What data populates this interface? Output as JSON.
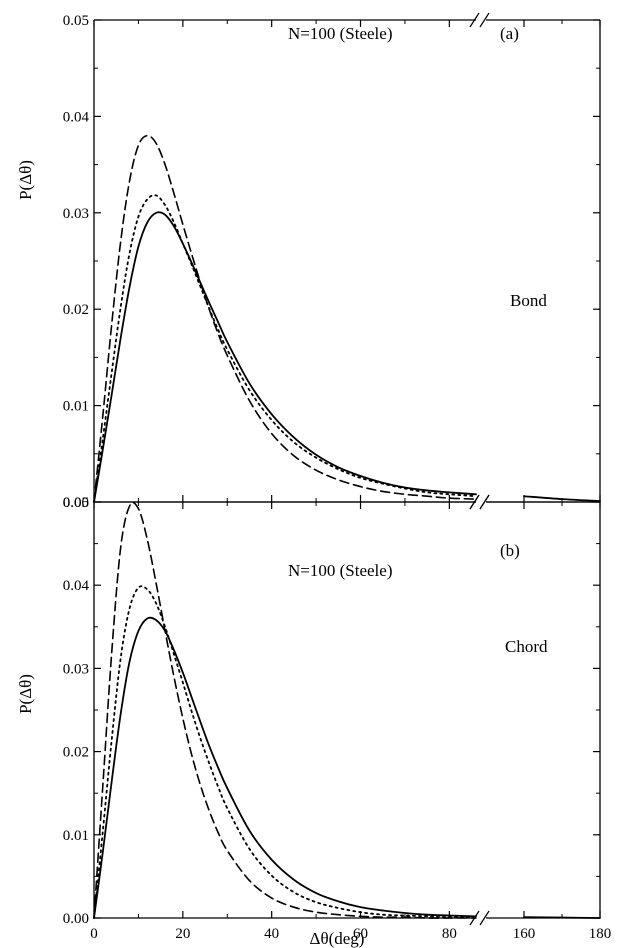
{
  "chart_data": [
    {
      "type": "line",
      "panel_label": "(a)",
      "annotation": "N=100 (Steele)",
      "annotation2": "Bond",
      "ylabel": "P(Δθ)",
      "xlabel": "",
      "ylim": [
        0,
        0.05
      ],
      "y_ticks": [
        "0.00",
        "0.01",
        "0.02",
        "0.03",
        "0.04",
        "0.05"
      ],
      "x_ticks": [
        "0",
        "20",
        "40",
        "60",
        "80",
        "160",
        "180"
      ],
      "x_axis_break": true,
      "x_segments": [
        [
          0,
          86
        ],
        [
          150,
          180
        ]
      ],
      "series": [
        {
          "style": "solid",
          "x": [
            0,
            2,
            4,
            6,
            8,
            10,
            12,
            14,
            16,
            18,
            20,
            22,
            24,
            26,
            28,
            30,
            35,
            40,
            45,
            50,
            55,
            60,
            65,
            70,
            75,
            80,
            86,
            160,
            170,
            180
          ],
          "y": [
            0,
            0.0055,
            0.0112,
            0.017,
            0.0223,
            0.0265,
            0.029,
            0.03,
            0.0298,
            0.0286,
            0.0268,
            0.0248,
            0.0227,
            0.0206,
            0.0186,
            0.0166,
            0.0123,
            0.0091,
            0.0067,
            0.0049,
            0.0036,
            0.0027,
            0.002,
            0.0015,
            0.0012,
            0.001,
            0.0008,
            0.0006,
            0.0003,
            0.0001
          ]
        },
        {
          "style": "dotted",
          "x": [
            0,
            2,
            4,
            6,
            8,
            10,
            12,
            14,
            16,
            18,
            20,
            22,
            24,
            26,
            28,
            30,
            35,
            40,
            45,
            50,
            55,
            60,
            65,
            70,
            75,
            80,
            86
          ],
          "y": [
            0,
            0.0066,
            0.0135,
            0.0202,
            0.0258,
            0.0296,
            0.0314,
            0.0318,
            0.0308,
            0.029,
            0.0268,
            0.0246,
            0.0223,
            0.02,
            0.0178,
            0.0158,
            0.0116,
            0.0085,
            0.0062,
            0.0046,
            0.0034,
            0.0025,
            0.0019,
            0.0014,
            0.001,
            0.0008,
            0.0006
          ]
        },
        {
          "style": "dashed",
          "x": [
            0,
            2,
            4,
            6,
            8,
            10,
            12,
            14,
            16,
            18,
            20,
            22,
            24,
            26,
            28,
            30,
            35,
            40,
            45,
            50,
            55,
            60,
            65,
            70,
            75,
            80,
            86
          ],
          "y": [
            0,
            0.009,
            0.0185,
            0.027,
            0.0333,
            0.037,
            0.038,
            0.0372,
            0.035,
            0.032,
            0.0288,
            0.0257,
            0.0227,
            0.0199,
            0.0174,
            0.0152,
            0.0105,
            0.0071,
            0.0048,
            0.0033,
            0.0023,
            0.0016,
            0.0011,
            0.0008,
            0.0006,
            0.0004,
            0.0003
          ]
        }
      ]
    },
    {
      "type": "line",
      "panel_label": "(b)",
      "annotation": "N=100 (Steele)",
      "annotation2": "Chord",
      "ylabel": "P(Δθ)",
      "xlabel": "Δθ(deg)",
      "ylim": [
        0,
        0.05
      ],
      "y_ticks": [
        "0.00",
        "0.01",
        "0.02",
        "0.03",
        "0.04",
        "0.05"
      ],
      "x_ticks": [
        "0",
        "20",
        "40",
        "60",
        "80",
        "160",
        "180"
      ],
      "x_axis_break": true,
      "x_segments": [
        [
          0,
          86
        ],
        [
          150,
          180
        ]
      ],
      "series": [
        {
          "style": "solid",
          "x": [
            0,
            2,
            4,
            6,
            8,
            10,
            12,
            14,
            16,
            18,
            20,
            22,
            24,
            26,
            28,
            30,
            35,
            40,
            45,
            50,
            55,
            60,
            65,
            70,
            75,
            80,
            86,
            160,
            170,
            180
          ],
          "y": [
            0,
            0.008,
            0.0165,
            0.0245,
            0.0308,
            0.0345,
            0.036,
            0.0358,
            0.0345,
            0.0322,
            0.0295,
            0.0265,
            0.0235,
            0.0206,
            0.018,
            0.0156,
            0.0105,
            0.007,
            0.0046,
            0.003,
            0.002,
            0.0013,
            0.0009,
            0.0006,
            0.0004,
            0.0003,
            0.0002,
            0.0001,
            5e-05,
            0.0
          ]
        },
        {
          "style": "dotted",
          "x": [
            0,
            2,
            4,
            6,
            8,
            10,
            12,
            14,
            16,
            18,
            20,
            22,
            24,
            26,
            28,
            30,
            35,
            40,
            45,
            50,
            55,
            60,
            65,
            70,
            75,
            80,
            86
          ],
          "y": [
            0,
            0.0105,
            0.0215,
            0.0312,
            0.0372,
            0.0397,
            0.0395,
            0.0378,
            0.035,
            0.0317,
            0.0283,
            0.0248,
            0.0215,
            0.0185,
            0.0157,
            0.0132,
            0.0083,
            0.0051,
            0.0031,
            0.0019,
            0.0012,
            0.0007,
            0.0004,
            0.0003,
            0.0002,
            0.0001,
            0.0001
          ]
        },
        {
          "style": "dashed",
          "x": [
            0,
            2,
            4,
            6,
            8,
            10,
            12,
            14,
            16,
            18,
            20,
            22,
            24,
            26,
            28,
            30,
            35,
            40,
            45,
            50,
            55,
            60,
            65,
            70,
            75,
            80,
            86
          ],
          "y": [
            0,
            0.016,
            0.032,
            0.0445,
            0.0495,
            0.0492,
            0.0455,
            0.0402,
            0.0345,
            0.029,
            0.024,
            0.0196,
            0.0159,
            0.0128,
            0.0102,
            0.0081,
            0.0045,
            0.0024,
            0.0013,
            0.0007,
            0.0004,
            0.0002,
            0.0001,
            0.0001,
            0.0,
            0.0,
            0.0
          ]
        }
      ]
    }
  ]
}
